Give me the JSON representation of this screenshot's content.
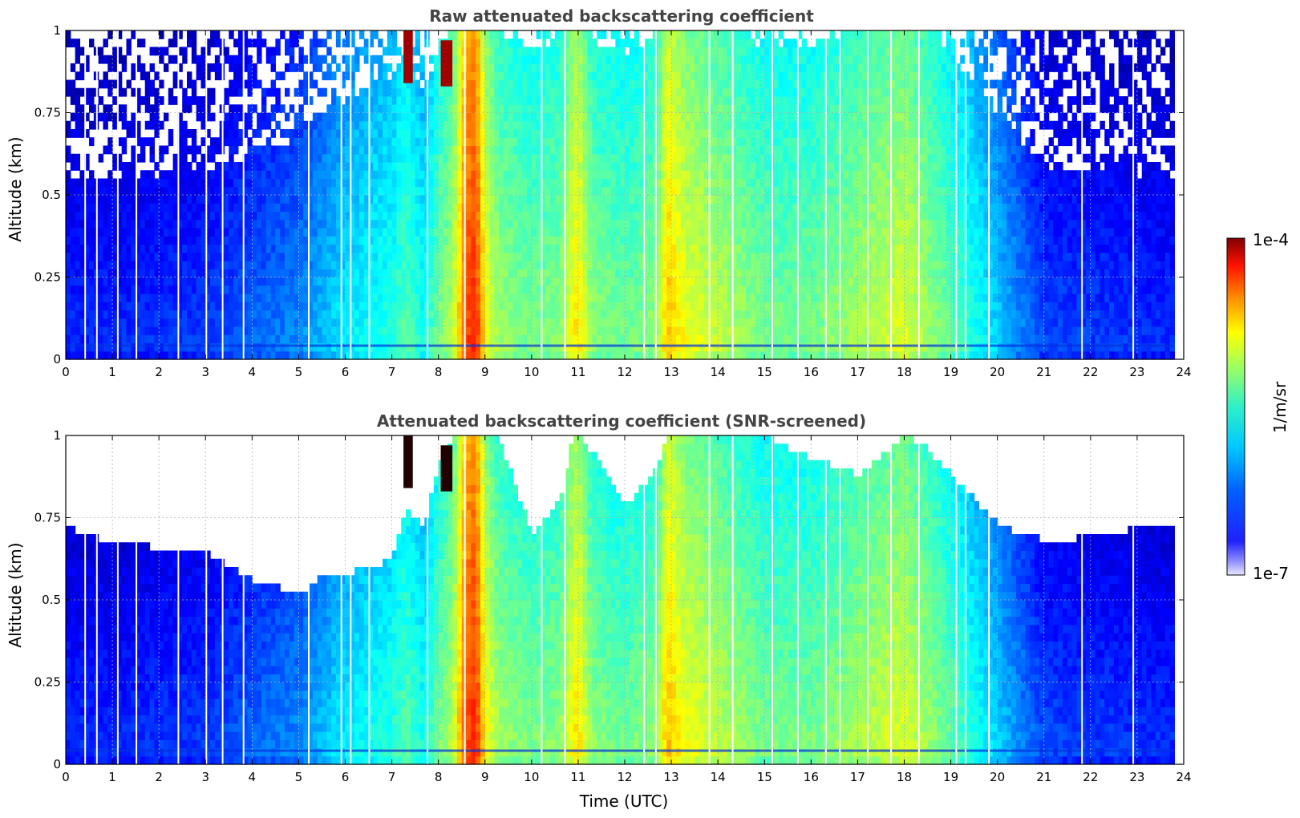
{
  "chart_data": [
    {
      "type": "heatmap",
      "title": "Raw attenuated backscattering coefficient",
      "xlabel": "",
      "ylabel": "Altitude (km)",
      "xlim": [
        0,
        24
      ],
      "ylim": [
        0,
        1
      ],
      "xticks": [
        "0",
        "1",
        "2",
        "3",
        "4",
        "5",
        "6",
        "7",
        "8",
        "9",
        "10",
        "11",
        "12",
        "13",
        "14",
        "15",
        "16",
        "17",
        "18",
        "19",
        "20",
        "21",
        "22",
        "23",
        "24"
      ],
      "yticks": [
        "0",
        "0.25",
        "0.5",
        "0.75",
        "1"
      ],
      "grid": true,
      "screened": false
    },
    {
      "type": "heatmap",
      "title": "Attenuated backscattering coefficient (SNR-screened)",
      "xlabel": "Time (UTC)",
      "ylabel": "Altitude (km)",
      "xlim": [
        0,
        24
      ],
      "ylim": [
        0,
        1
      ],
      "xticks": [
        "0",
        "1",
        "2",
        "3",
        "4",
        "5",
        "6",
        "7",
        "8",
        "9",
        "10",
        "11",
        "12",
        "13",
        "14",
        "15",
        "16",
        "17",
        "18",
        "19",
        "20",
        "21",
        "22",
        "23",
        "24"
      ],
      "yticks": [
        "0",
        "0.25",
        "0.5",
        "0.75",
        "1"
      ],
      "grid": true,
      "screened": true
    }
  ],
  "colorbar": {
    "label": "1/m/sr",
    "max_label": "1e-4",
    "min_label": "1e-7",
    "scale": "log",
    "colormap": "jet",
    "range": [
      1e-07,
      0.0001
    ]
  },
  "profile": {
    "time": [
      0,
      1,
      2,
      3,
      4,
      5,
      5.5,
      6,
      7,
      7.3,
      7.7,
      8,
      8.3,
      8.6,
      8.8,
      9,
      9.3,
      10,
      10.6,
      10.9,
      11,
      11.3,
      12,
      12.7,
      12.9,
      13.3,
      14,
      15,
      16,
      17,
      18,
      18.5,
      19,
      20,
      21,
      22,
      23,
      23.8
    ],
    "intensity": [
      0.17,
      0.17,
      0.18,
      0.19,
      0.23,
      0.27,
      0.32,
      0.37,
      0.42,
      0.47,
      0.4,
      0.5,
      0.56,
      0.82,
      0.86,
      0.64,
      0.54,
      0.5,
      0.52,
      0.64,
      0.66,
      0.52,
      0.49,
      0.53,
      0.7,
      0.62,
      0.57,
      0.5,
      0.5,
      0.55,
      0.6,
      0.54,
      0.48,
      0.34,
      0.2,
      0.19,
      0.18,
      0.17
    ],
    "snr_top": [
      0.72,
      0.67,
      0.66,
      0.65,
      0.56,
      0.52,
      0.57,
      0.58,
      0.62,
      0.78,
      0.72,
      0.92,
      1.0,
      1.0,
      1.0,
      1.0,
      1.0,
      0.7,
      0.8,
      1.0,
      1.0,
      0.95,
      0.78,
      0.9,
      1.0,
      1.0,
      1.0,
      1.0,
      0.93,
      0.88,
      1.0,
      0.96,
      0.88,
      0.73,
      0.68,
      0.69,
      0.72,
      0.72
    ]
  },
  "cloud_patches": [
    {
      "t0": 7.25,
      "t1": 7.45,
      "alt0": 0.84,
      "alt1": 1.0
    },
    {
      "t0": 8.05,
      "t1": 8.3,
      "alt0": 0.83,
      "alt1": 0.97
    }
  ]
}
